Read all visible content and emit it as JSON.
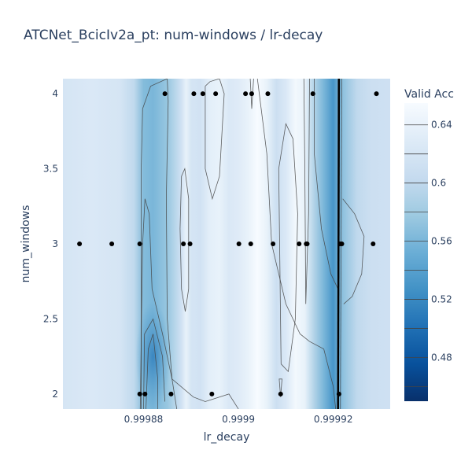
{
  "chart_data": {
    "type": "contour",
    "title": "ATCNet_BcicIv2a_pt: num-windows / lr-decay",
    "xlabel": "lr_decay",
    "ylabel": "num_windows",
    "colorbar_title": "Valid Acc",
    "xlim": [
      0.999863,
      0.999932
    ],
    "ylim": [
      1.9,
      4.1
    ],
    "x_ticks": [
      {
        "value": 0.99988,
        "label": "0.99988"
      },
      {
        "value": 0.9999,
        "label": "0.9999"
      },
      {
        "value": 0.99992,
        "label": "0.99992"
      }
    ],
    "y_ticks": [
      {
        "value": 2,
        "label": "2"
      },
      {
        "value": 2.5,
        "label": "2.5"
      },
      {
        "value": 3,
        "label": "3"
      },
      {
        "value": 3.5,
        "label": "3.5"
      },
      {
        "value": 4,
        "label": "4"
      }
    ],
    "colorbar": {
      "range": [
        0.45,
        0.655
      ],
      "ticks": [
        {
          "value": 0.64,
          "label": "0.64"
        },
        {
          "value": 0.6,
          "label": "0.6"
        },
        {
          "value": 0.56,
          "label": "0.56"
        },
        {
          "value": 0.52,
          "label": "0.52"
        },
        {
          "value": 0.48,
          "label": "0.48"
        }
      ],
      "levels": [
        0.46,
        0.48,
        0.5,
        0.52,
        0.54,
        0.56,
        0.58,
        0.6,
        0.62,
        0.64
      ]
    },
    "colorscale": [
      "#08306b",
      "#08519c",
      "#2171b5",
      "#4292c6",
      "#6baed6",
      "#9ecae1",
      "#c6dbef",
      "#deebf7",
      "#f7fbff"
    ],
    "points": [
      {
        "x": 0.9998845,
        "y": 4
      },
      {
        "x": 0.9998906,
        "y": 4
      },
      {
        "x": 0.9998925,
        "y": 4
      },
      {
        "x": 0.9998952,
        "y": 4
      },
      {
        "x": 0.9999015,
        "y": 4
      },
      {
        "x": 0.9999028,
        "y": 4
      },
      {
        "x": 0.9999062,
        "y": 4
      },
      {
        "x": 0.9999157,
        "y": 4
      },
      {
        "x": 0.9999291,
        "y": 4
      },
      {
        "x": 0.9998665,
        "y": 3
      },
      {
        "x": 0.9998733,
        "y": 3
      },
      {
        "x": 0.9998792,
        "y": 3
      },
      {
        "x": 0.9998884,
        "y": 3
      },
      {
        "x": 0.9998898,
        "y": 3
      },
      {
        "x": 0.9999001,
        "y": 3
      },
      {
        "x": 0.9999026,
        "y": 3
      },
      {
        "x": 0.9999073,
        "y": 3
      },
      {
        "x": 0.9999128,
        "y": 3
      },
      {
        "x": 0.9999143,
        "y": 3
      },
      {
        "x": 0.9999145,
        "y": 3
      },
      {
        "x": 0.9999214,
        "y": 3
      },
      {
        "x": 0.9999218,
        "y": 3
      },
      {
        "x": 0.9999284,
        "y": 3
      },
      {
        "x": 0.9998792,
        "y": 2
      },
      {
        "x": 0.9998803,
        "y": 2
      },
      {
        "x": 0.9998858,
        "y": 2
      },
      {
        "x": 0.9998944,
        "y": 2
      },
      {
        "x": 0.9999089,
        "y": 2
      },
      {
        "x": 0.9999212,
        "y": 2
      }
    ],
    "value_profile_x": [
      {
        "x": 0.999863,
        "v": 0.62
      },
      {
        "x": 0.999869,
        "v": 0.625
      },
      {
        "x": 0.999875,
        "v": 0.62
      },
      {
        "x": 0.999878,
        "v": 0.6
      },
      {
        "x": 0.99988,
        "v": 0.565
      },
      {
        "x": 0.999882,
        "v": 0.56
      },
      {
        "x": 0.999885,
        "v": 0.575
      },
      {
        "x": 0.999888,
        "v": 0.615
      },
      {
        "x": 0.999889,
        "v": 0.64
      },
      {
        "x": 0.99989,
        "v": 0.62
      },
      {
        "x": 0.999892,
        "v": 0.615
      },
      {
        "x": 0.999894,
        "v": 0.635
      },
      {
        "x": 0.999896,
        "v": 0.64
      },
      {
        "x": 0.999898,
        "v": 0.625
      },
      {
        "x": 0.9999,
        "v": 0.63
      },
      {
        "x": 0.999902,
        "v": 0.64
      },
      {
        "x": 0.999904,
        "v": 0.66
      },
      {
        "x": 0.999906,
        "v": 0.64
      },
      {
        "x": 0.999908,
        "v": 0.61
      },
      {
        "x": 0.99991,
        "v": 0.625
      },
      {
        "x": 0.999912,
        "v": 0.65
      },
      {
        "x": 0.999914,
        "v": 0.64
      },
      {
        "x": 0.999916,
        "v": 0.59
      },
      {
        "x": 0.999918,
        "v": 0.56
      },
      {
        "x": 0.99992,
        "v": 0.53
      },
      {
        "x": 0.999922,
        "v": 0.57
      },
      {
        "x": 0.999925,
        "v": 0.6
      },
      {
        "x": 0.999928,
        "v": 0.61
      },
      {
        "x": 0.999932,
        "v": 0.612
      }
    ]
  }
}
